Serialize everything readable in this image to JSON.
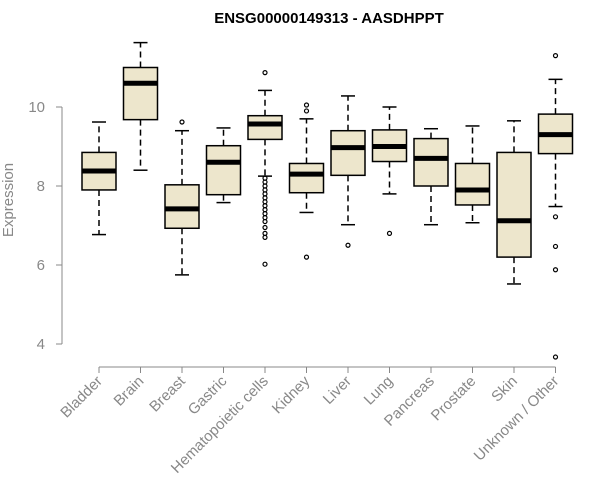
{
  "chart_data": {
    "type": "boxplot",
    "title": "ENSG00000149313 - AASDHPPT",
    "xlabel": "",
    "ylabel": "Expression",
    "ylim": [
      3.5,
      12.0
    ],
    "yticks": [
      4,
      6,
      8,
      10
    ],
    "grid": false,
    "categories": [
      "Bladder",
      "Brain",
      "Breast",
      "Gastric",
      "Hematopoietic cells",
      "Kidney",
      "Liver",
      "Lung",
      "Pancreas",
      "Prostate",
      "Skin",
      "Unknown / Other"
    ],
    "box_color": "#ede6cc",
    "boxes": [
      {
        "name": "Bladder",
        "min": 6.77,
        "q1": 7.9,
        "median": 8.38,
        "q3": 8.85,
        "max": 9.62,
        "outliers": []
      },
      {
        "name": "Brain",
        "min": 8.4,
        "q1": 9.68,
        "median": 10.6,
        "q3": 11.0,
        "max": 11.63,
        "outliers": []
      },
      {
        "name": "Breast",
        "min": 5.75,
        "q1": 6.93,
        "median": 7.42,
        "q3": 8.03,
        "max": 9.4,
        "outliers": [
          9.62
        ]
      },
      {
        "name": "Gastric",
        "min": 7.58,
        "q1": 7.78,
        "median": 8.6,
        "q3": 9.02,
        "max": 9.47,
        "outliers": []
      },
      {
        "name": "Hematopoietic cells",
        "min": 8.25,
        "q1": 9.18,
        "median": 9.57,
        "q3": 9.78,
        "max": 10.42,
        "outliers": [
          10.87,
          8.2,
          8.1,
          8.0,
          7.9,
          7.8,
          7.7,
          7.6,
          7.5,
          7.4,
          7.3,
          7.2,
          7.1,
          6.95,
          6.8,
          6.7,
          6.02
        ]
      },
      {
        "name": "Kidney",
        "min": 7.33,
        "q1": 7.83,
        "median": 8.3,
        "q3": 8.57,
        "max": 9.7,
        "outliers": [
          10.05,
          9.9,
          6.2
        ]
      },
      {
        "name": "Liver",
        "min": 7.02,
        "q1": 8.27,
        "median": 8.97,
        "q3": 9.4,
        "max": 10.28,
        "outliers": [
          6.5
        ]
      },
      {
        "name": "Lung",
        "min": 7.8,
        "q1": 8.62,
        "median": 9.0,
        "q3": 9.42,
        "max": 10.0,
        "outliers": [
          6.8
        ]
      },
      {
        "name": "Pancreas",
        "min": 7.02,
        "q1": 8.0,
        "median": 8.7,
        "q3": 9.2,
        "max": 9.45,
        "outliers": []
      },
      {
        "name": "Prostate",
        "min": 7.07,
        "q1": 7.52,
        "median": 7.9,
        "q3": 8.57,
        "max": 9.52,
        "outliers": []
      },
      {
        "name": "Skin",
        "min": 5.52,
        "q1": 6.2,
        "median": 7.12,
        "q3": 8.85,
        "max": 9.65,
        "outliers": []
      },
      {
        "name": "Unknown / Other",
        "min": 7.48,
        "q1": 8.82,
        "median": 9.3,
        "q3": 9.82,
        "max": 10.7,
        "outliers": [
          11.3,
          7.22,
          6.47,
          5.88,
          3.67
        ]
      }
    ]
  }
}
